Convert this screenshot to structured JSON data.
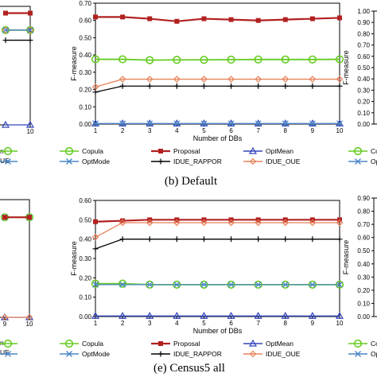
{
  "chart_data": [
    {
      "panel": "left-top",
      "type": "line",
      "x": [
        9,
        10
      ],
      "ylim": [
        0,
        0.7
      ],
      "series": [
        {
          "key": "proposal",
          "values": [
            0.66,
            0.66
          ]
        },
        {
          "key": "copula",
          "values": [
            0.56,
            0.56
          ]
        },
        {
          "key": "idue_oue",
          "values": [
            0.56,
            0.56
          ]
        },
        {
          "key": "optmode",
          "values": [
            0.56,
            0.56
          ]
        },
        {
          "key": "rappor",
          "values": [
            0.5,
            0.5
          ]
        },
        {
          "key": "optmean",
          "values": [
            0.0,
            0.0
          ]
        }
      ],
      "xticks": [
        "10"
      ],
      "legend_fragments": [
        "n",
        "UE"
      ]
    },
    {
      "panel": "middle-top",
      "type": "line",
      "caption": "(b) Default",
      "xlabel": "Number of DBs",
      "ylabel": "F-measure",
      "x": [
        1,
        2,
        3,
        4,
        5,
        6,
        7,
        8,
        9,
        10
      ],
      "ylim": [
        0,
        0.7
      ],
      "yticks": [
        "0.00",
        "0.10",
        "0.20",
        "0.30",
        "0.40",
        "0.50",
        "0.60",
        "0.70"
      ],
      "series": [
        {
          "key": "proposal",
          "values": [
            0.62,
            0.62,
            0.61,
            0.595,
            0.61,
            0.605,
            0.6,
            0.605,
            0.61,
            0.615
          ]
        },
        {
          "key": "copula",
          "values": [
            0.375,
            0.375,
            0.37,
            0.372,
            0.372,
            0.373,
            0.374,
            0.374,
            0.374,
            0.375
          ]
        },
        {
          "key": "idue_oue",
          "values": [
            0.215,
            0.26,
            0.26,
            0.26,
            0.26,
            0.26,
            0.26,
            0.26,
            0.26,
            0.26
          ]
        },
        {
          "key": "rappor",
          "values": [
            0.185,
            0.22,
            0.22,
            0.22,
            0.22,
            0.22,
            0.22,
            0.22,
            0.22,
            0.22
          ]
        },
        {
          "key": "optmean",
          "values": [
            0.003,
            0.003,
            0.003,
            0.003,
            0.003,
            0.003,
            0.003,
            0.003,
            0.003,
            0.003
          ]
        },
        {
          "key": "optmode",
          "values": [
            0.003,
            0.003,
            0.003,
            0.003,
            0.003,
            0.003,
            0.003,
            0.003,
            0.003,
            0.003
          ]
        }
      ]
    },
    {
      "panel": "right-top",
      "type": "line",
      "ylabel": "F-measure",
      "ylim": [
        0,
        1.0
      ],
      "yticks": [
        "0.00",
        "0.10",
        "0.20",
        "0.30",
        "0.40",
        "0.50",
        "0.60",
        "0.70",
        "0.80",
        "0.90",
        "1.00"
      ]
    },
    {
      "panel": "left-bottom",
      "type": "line",
      "x": [
        9,
        10
      ],
      "ylim": [
        0,
        0.6
      ],
      "series": [
        {
          "key": "copula",
          "values": [
            0.51,
            0.51
          ]
        },
        {
          "key": "optmode",
          "values": [
            0.51,
            0.51
          ]
        },
        {
          "key": "proposal",
          "values": [
            0.51,
            0.51
          ]
        },
        {
          "key": "optmean",
          "values": [
            0.0,
            0.0
          ]
        },
        {
          "key": "idue_oue",
          "values": [
            0.0,
            0.0
          ]
        }
      ],
      "xticks": [
        "9",
        "10"
      ],
      "legend_fragments": [
        "n",
        "UE"
      ]
    },
    {
      "panel": "middle-bottom",
      "type": "line",
      "caption": "(e) Census5  all",
      "xlabel": "Number of DBs",
      "ylabel": "F-measure",
      "x": [
        1,
        2,
        3,
        4,
        5,
        6,
        7,
        8,
        9,
        10
      ],
      "ylim": [
        0,
        0.6
      ],
      "yticks": [
        "0.00",
        "0.10",
        "0.20",
        "0.30",
        "0.40",
        "0.50",
        "0.60"
      ],
      "series": [
        {
          "key": "proposal",
          "values": [
            0.49,
            0.495,
            0.5,
            0.5,
            0.5,
            0.5,
            0.5,
            0.5,
            0.5,
            0.5
          ]
        },
        {
          "key": "idue_oue",
          "values": [
            0.41,
            0.485,
            0.485,
            0.485,
            0.485,
            0.485,
            0.485,
            0.485,
            0.485,
            0.485
          ]
        },
        {
          "key": "rappor",
          "values": [
            0.35,
            0.4,
            0.4,
            0.4,
            0.4,
            0.4,
            0.4,
            0.4,
            0.4,
            0.4
          ]
        },
        {
          "key": "copula",
          "values": [
            0.17,
            0.17,
            0.165,
            0.165,
            0.165,
            0.165,
            0.165,
            0.165,
            0.165,
            0.165
          ]
        },
        {
          "key": "optmode",
          "values": [
            0.165,
            0.165,
            0.165,
            0.165,
            0.165,
            0.165,
            0.165,
            0.165,
            0.165,
            0.165
          ]
        },
        {
          "key": "optmean",
          "values": [
            0.003,
            0.003,
            0.003,
            0.003,
            0.003,
            0.003,
            0.003,
            0.003,
            0.003,
            0.003
          ]
        }
      ]
    },
    {
      "panel": "right-bottom",
      "type": "line",
      "ylabel": "F-measure",
      "ylim": [
        0,
        0.9
      ],
      "yticks": [
        "0.00",
        "0.10",
        "0.20",
        "0.30",
        "0.40",
        "0.50",
        "0.60",
        "0.70",
        "0.80",
        "0.90"
      ]
    }
  ],
  "legend": {
    "copula": "Copula",
    "proposal": "Proposal",
    "optmean": "OptMean",
    "optmode": "OptMode",
    "rappor": "IDUE_RAPPOR",
    "idue_oue": "IDUE_OUE"
  },
  "right_legend_fragments": [
    "Copu",
    "OptM"
  ],
  "colors": {
    "copula": "#66cc22",
    "proposal": "#b22020",
    "optmean": "#3344bb",
    "optmode": "#4a86c8",
    "rappor": "#000000",
    "idue_oue": "#e8825a"
  }
}
